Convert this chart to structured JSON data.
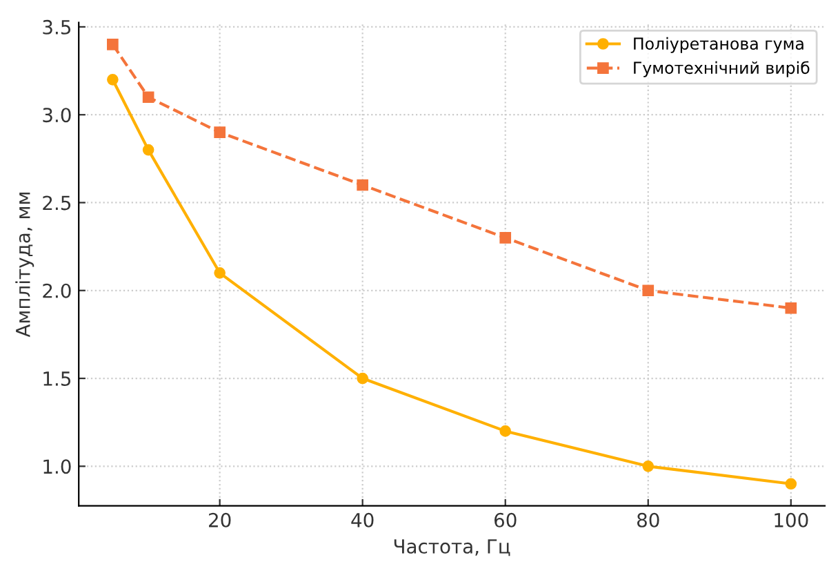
{
  "chart_data": {
    "type": "line",
    "xlabel": "Частота, Гц",
    "ylabel": "Амплітуда, мм",
    "x": [
      5,
      10,
      20,
      40,
      60,
      80,
      100
    ],
    "series": [
      {
        "name": "Поліуретанова гума",
        "color": "#ffb000",
        "values": [
          3.2,
          2.8,
          2.1,
          1.5,
          1.2,
          1.0,
          0.9
        ],
        "marker": "circle",
        "line_style": "solid"
      },
      {
        "name": "Гумотехнічний виріб",
        "color": "#f4743b",
        "values": [
          3.4,
          3.1,
          2.9,
          2.6,
          2.3,
          2.0,
          1.9
        ],
        "marker": "square",
        "line_style": "dashed"
      }
    ],
    "xlim": [
      0.25,
      104.75
    ],
    "xticks": [
      20,
      40,
      60,
      80,
      100
    ],
    "ylim": [
      0.775,
      3.525
    ],
    "yticks": [
      {
        "value": 1.0,
        "label": "1.0"
      },
      {
        "value": 1.5,
        "label": "1.5"
      },
      {
        "value": 2.0,
        "label": "2.0"
      },
      {
        "value": 2.5,
        "label": "2.5"
      },
      {
        "value": 3.0,
        "label": "3.0"
      },
      {
        "value": 3.5,
        "label": "3.5"
      }
    ],
    "grid": true,
    "legend": "top right"
  }
}
